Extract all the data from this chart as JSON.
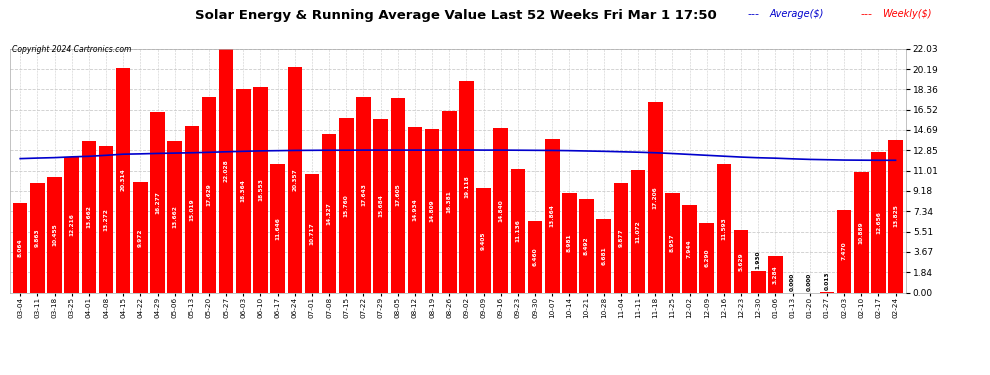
{
  "title": "Solar Energy & Running Average Value Last 52 Weeks Fri Mar 1 17:50",
  "copyright": "Copyright 2024 Cartronics.com",
  "legend_average": "Average($)",
  "legend_weekly": "Weekly($)",
  "bar_color": "#ff0000",
  "avg_line_color": "#0000cc",
  "background_color": "#ffffff",
  "grid_color": "#cccccc",
  "categories": [
    "03-04",
    "03-11",
    "03-18",
    "03-25",
    "04-01",
    "04-08",
    "04-15",
    "04-22",
    "04-29",
    "05-06",
    "05-13",
    "05-20",
    "05-27",
    "06-03",
    "06-10",
    "06-17",
    "06-24",
    "07-01",
    "07-08",
    "07-15",
    "07-22",
    "07-29",
    "08-05",
    "08-12",
    "08-19",
    "08-26",
    "09-02",
    "09-09",
    "09-16",
    "09-23",
    "09-30",
    "10-07",
    "10-14",
    "10-21",
    "10-28",
    "11-04",
    "11-11",
    "11-18",
    "11-25",
    "12-02",
    "12-09",
    "12-16",
    "12-23",
    "12-30",
    "01-06",
    "01-13",
    "01-20",
    "01-27",
    "02-03",
    "02-10",
    "02-17",
    "02-24"
  ],
  "weekly_values": [
    8.064,
    9.863,
    10.455,
    12.216,
    13.662,
    13.272,
    20.314,
    9.972,
    16.277,
    13.662,
    15.019,
    17.629,
    22.028,
    18.364,
    18.553,
    11.646,
    20.357,
    10.717,
    14.327,
    15.76,
    17.643,
    15.684,
    17.605,
    14.934,
    14.809,
    16.381,
    19.118,
    9.405,
    14.84,
    11.136,
    6.46,
    13.864,
    8.981,
    8.492,
    6.681,
    9.877,
    11.072,
    17.206,
    8.957,
    7.944,
    6.29,
    11.593,
    5.629,
    1.93,
    3.284,
    0.0,
    0.0,
    0.013,
    7.47,
    10.889,
    12.656,
    13.825
  ],
  "avg_values": [
    12.1,
    12.15,
    12.19,
    12.26,
    12.31,
    12.4,
    12.5,
    12.53,
    12.57,
    12.6,
    12.63,
    12.67,
    12.72,
    12.76,
    12.8,
    12.82,
    12.84,
    12.85,
    12.86,
    12.86,
    12.87,
    12.87,
    12.87,
    12.87,
    12.87,
    12.88,
    12.88,
    12.87,
    12.87,
    12.86,
    12.85,
    12.84,
    12.82,
    12.79,
    12.76,
    12.72,
    12.68,
    12.63,
    12.56,
    12.48,
    12.4,
    12.32,
    12.24,
    12.18,
    12.14,
    12.08,
    12.03,
    12.0,
    11.97,
    11.96,
    11.95,
    11.95
  ],
  "ylim": [
    0.0,
    22.03
  ],
  "yticks": [
    0.0,
    1.84,
    3.67,
    5.51,
    7.34,
    9.18,
    11.01,
    12.85,
    14.69,
    16.52,
    18.36,
    20.19,
    22.03
  ]
}
